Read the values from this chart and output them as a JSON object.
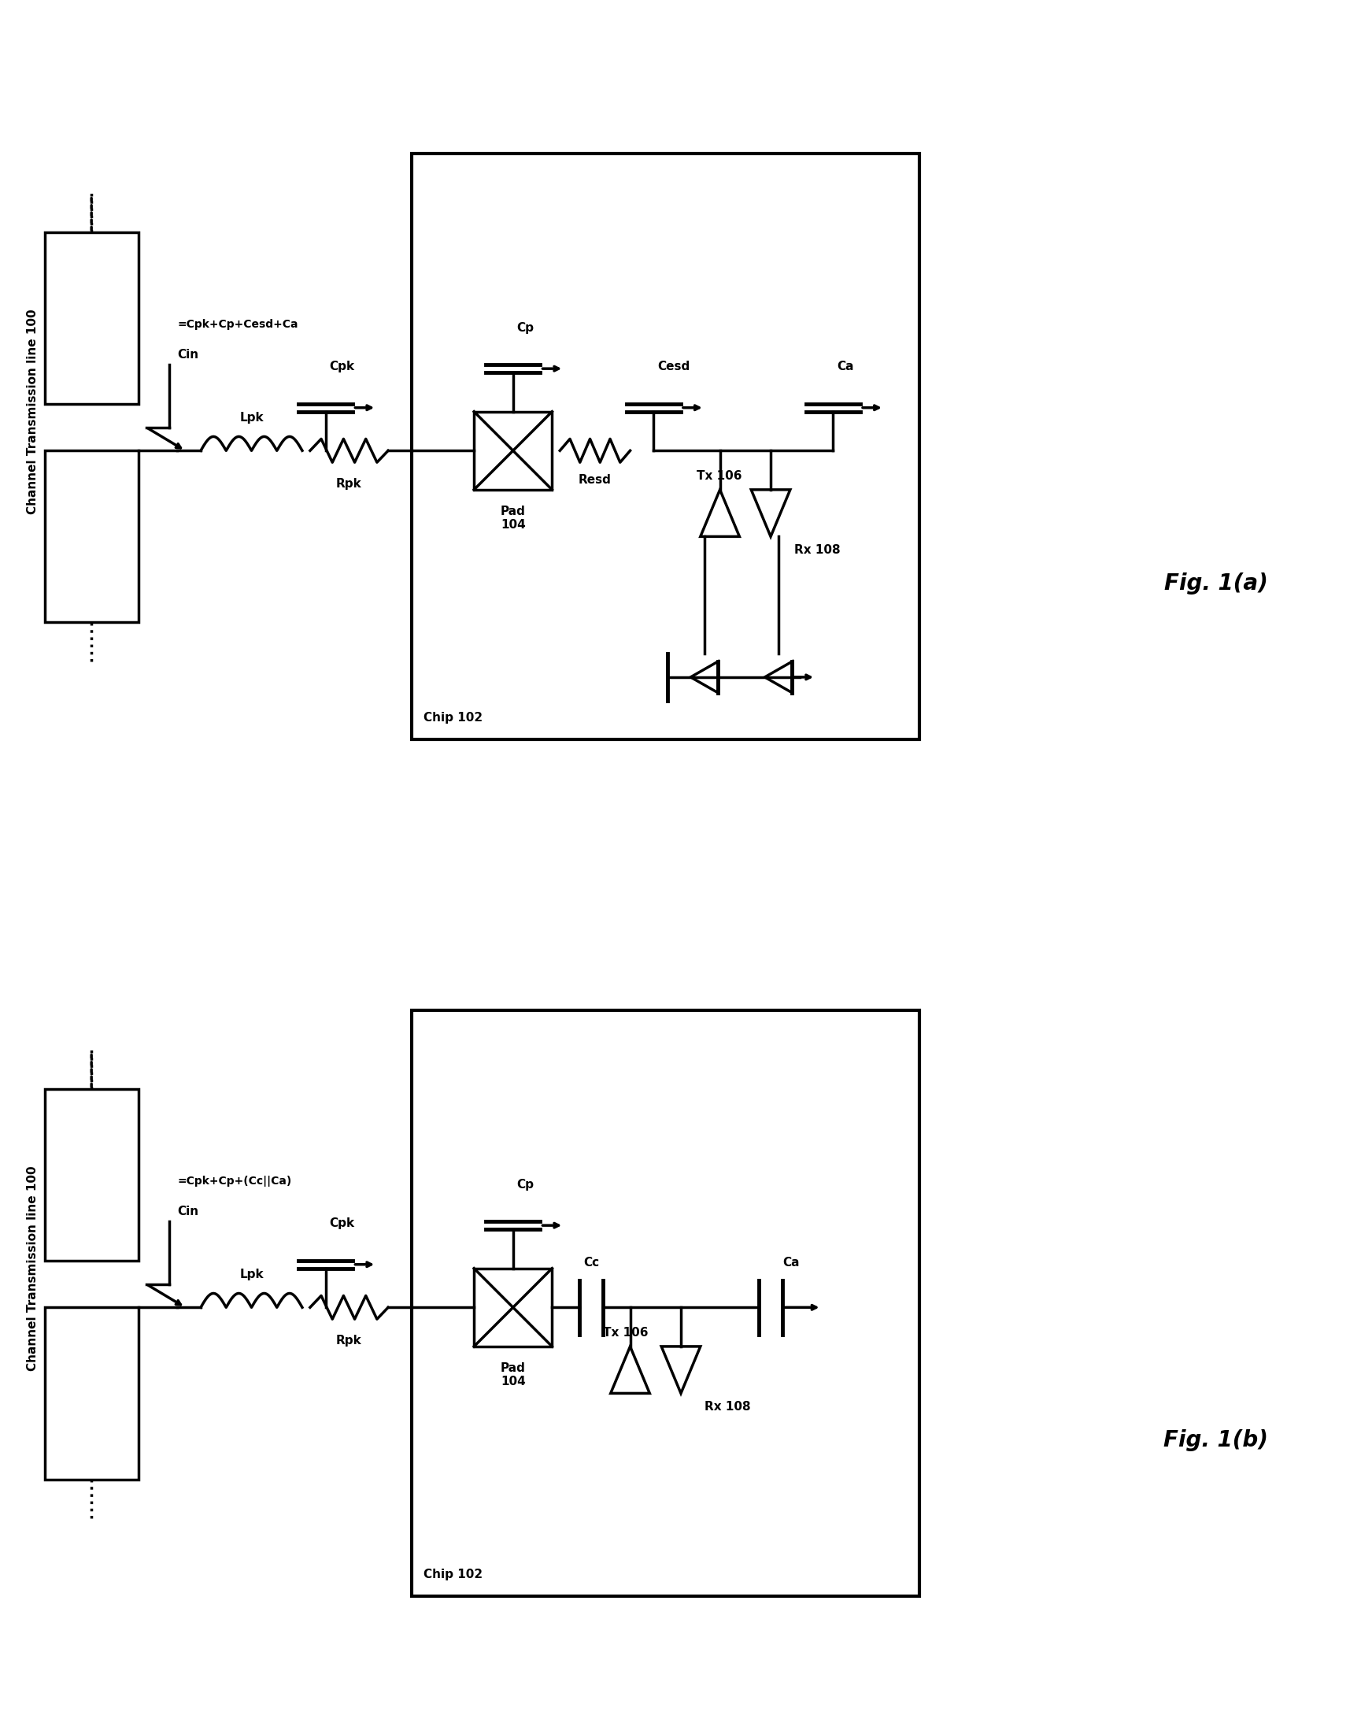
{
  "fig_width": 17.29,
  "fig_height": 21.83,
  "bg_color": "#ffffff",
  "line_color": "#000000",
  "line_width": 2.5,
  "fig_a_label": "Fig. 1(a)",
  "fig_b_label": "Fig. 1(b)",
  "channel_label": "Channel Transmission line 100",
  "chip_label": "Chip 102",
  "pad_label": "Pad\n104",
  "tx_label": "Tx 106",
  "rx_label": "Rx 108",
  "cin_label": "Cin",
  "cin_eq_a": "=Cpk+Cp+Cesd+Ca",
  "cin_eq_b": "=Cpk+Cp+(Cc||Ca)",
  "cpk_label": "Cpk",
  "lpk_label": "Lpk",
  "rpk_label": "Rpk",
  "cp_label": "Cp",
  "cc_label": "Cc",
  "ca_label": "Ca",
  "cesd_label": "Cesd",
  "resd_label": "Resd"
}
